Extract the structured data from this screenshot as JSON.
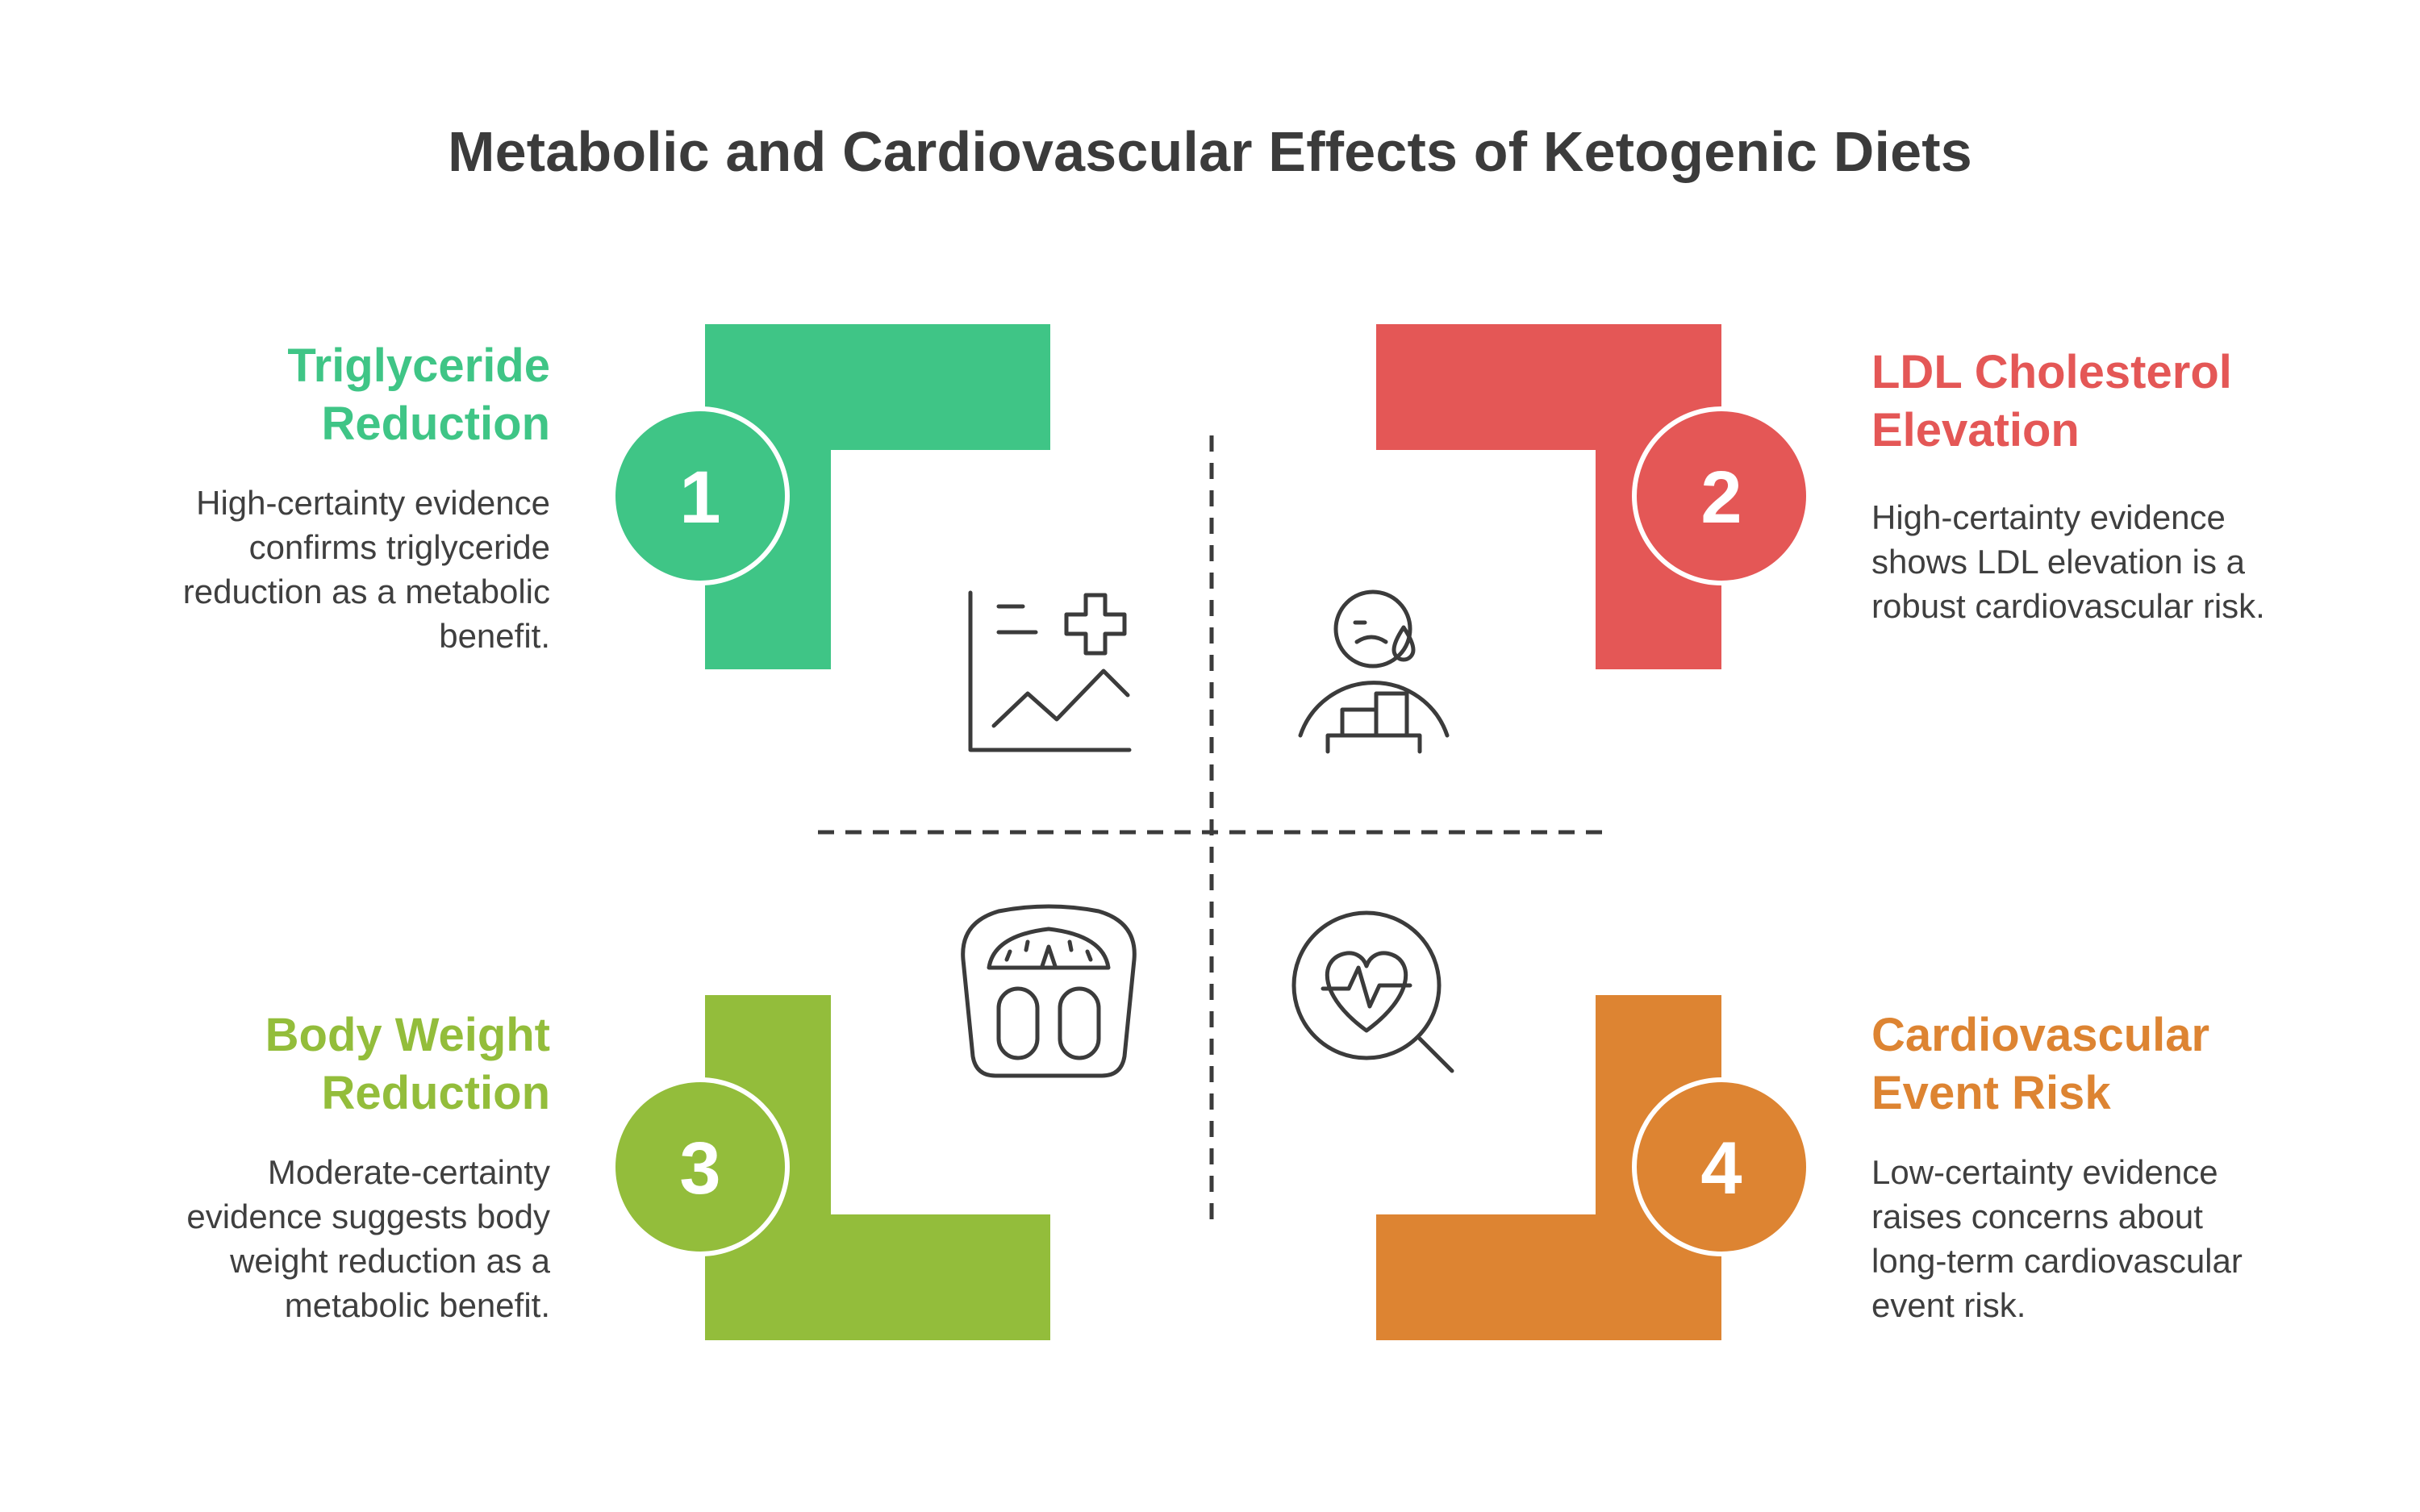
{
  "title": "Metabolic and Cardiovascular Effects of Ketogenic Diets",
  "colors": {
    "green": "#3fc586",
    "red": "#e45756",
    "lime": "#93bd3b",
    "orange": "#dd8432",
    "text": "#3f3f3f",
    "icon": "#3b3b3b"
  },
  "items": [
    {
      "number": "1",
      "title_line1": "Triglyceride",
      "title_line2": "Reduction",
      "desc_line1": "High-certainty evidence",
      "desc_line2": "confirms triglyceride",
      "desc_line3": "reduction as a metabolic",
      "desc_line4": "benefit.",
      "icon": "chart-health-icon"
    },
    {
      "number": "2",
      "title_line1": "LDL Cholesterol",
      "title_line2": "Elevation",
      "desc_line1": "High-certainty evidence",
      "desc_line2": "shows LDL elevation is a",
      "desc_line3": "robust cardiovascular risk.",
      "desc_line4": "",
      "icon": "worried-person-chart-icon"
    },
    {
      "number": "3",
      "title_line1": "Body Weight",
      "title_line2": "Reduction",
      "desc_line1": "Moderate-certainty",
      "desc_line2": "evidence suggests body",
      "desc_line3": "weight reduction as a",
      "desc_line4": "metabolic benefit.",
      "icon": "bathroom-scale-icon"
    },
    {
      "number": "4",
      "title_line1": "Cardiovascular",
      "title_line2": "Event Risk",
      "desc_line1": "Low-certainty evidence",
      "desc_line2": "raises concerns about",
      "desc_line3": "long-term cardiovascular",
      "desc_line4": "event risk.",
      "icon": "heart-magnifier-icon"
    }
  ]
}
